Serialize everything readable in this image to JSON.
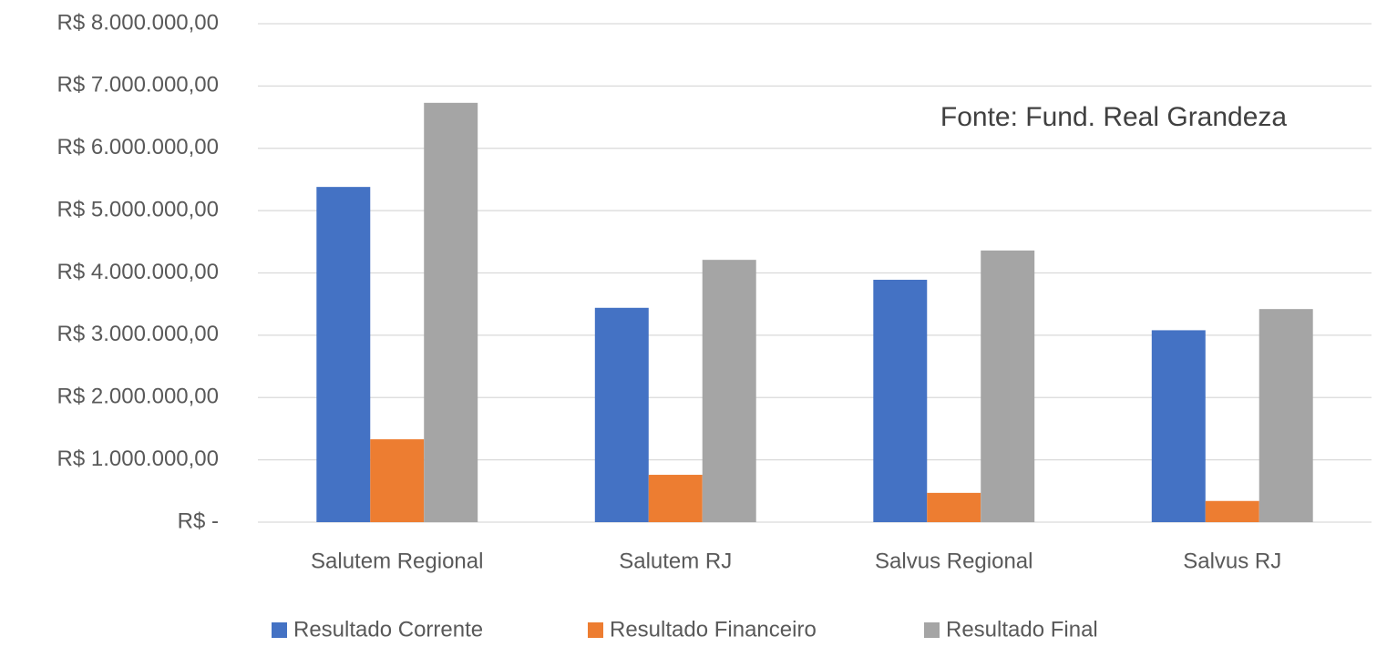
{
  "chart_data": {
    "type": "bar",
    "annotation": "Fonte: Fund. Real Grandeza",
    "categories": [
      "Salutem Regional",
      "Salutem RJ",
      "Salvus Regional",
      "Salvus RJ"
    ],
    "series": [
      {
        "name": "Resultado Corrente",
        "color": "#4472c4",
        "values": [
          5380000,
          3440000,
          3890000,
          3080000
        ]
      },
      {
        "name": "Resultado Financeiro",
        "color": "#ed7d31",
        "values": [
          1330000,
          760000,
          470000,
          340000
        ]
      },
      {
        "name": "Resultado Final",
        "color": "#a5a5a5",
        "values": [
          6730000,
          4210000,
          4360000,
          3420000
        ]
      }
    ],
    "ylim": [
      0,
      8000000
    ],
    "yticks": [
      {
        "value": 0,
        "label": "R$ -"
      },
      {
        "value": 1000000,
        "label": "R$ 1.000.000,00"
      },
      {
        "value": 2000000,
        "label": "R$ 2.000.000,00"
      },
      {
        "value": 3000000,
        "label": "R$ 3.000.000,00"
      },
      {
        "value": 4000000,
        "label": "R$ 4.000.000,00"
      },
      {
        "value": 5000000,
        "label": "R$ 5.000.000,00"
      },
      {
        "value": 6000000,
        "label": "R$ 6.000.000,00"
      },
      {
        "value": 7000000,
        "label": "R$ 7.000.000,00"
      },
      {
        "value": 8000000,
        "label": "R$ 8.000.000,00"
      }
    ],
    "grid": true,
    "legend": "bottom"
  }
}
